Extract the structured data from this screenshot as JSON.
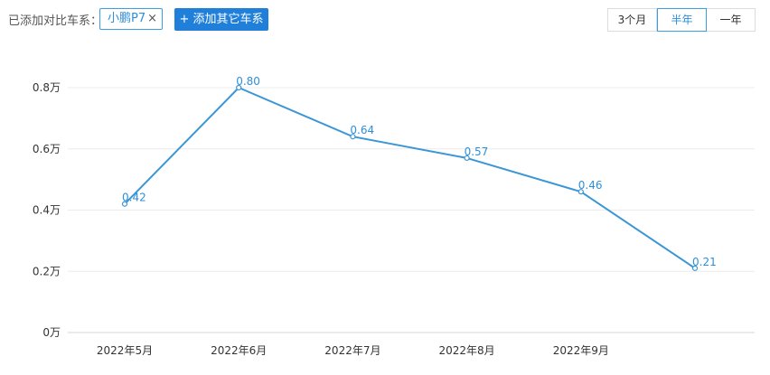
{
  "toolbar": {
    "compare_label": "已添加对比车系：",
    "chip_label": "小鹏P7",
    "chip_close_glyph": "×",
    "add_plus_glyph": "+",
    "add_button_label": "添加其它车系",
    "periods": [
      "3个月",
      "半年",
      "一年"
    ],
    "active_period": "半年"
  },
  "colors": {
    "line": "#3a96d6",
    "accent": "#1f7fd9",
    "grid": "#ececec"
  },
  "chart_data": {
    "type": "line",
    "categories": [
      "2022年5月",
      "2022年6月",
      "2022年7月",
      "2022年8月",
      "2022年9月",
      ""
    ],
    "values": [
      0.42,
      0.8,
      0.64,
      0.57,
      0.46,
      0.21
    ],
    "value_labels": [
      "0.42",
      "0.80",
      "0.64",
      "0.57",
      "0.46",
      "0.21"
    ],
    "yticks": [
      0,
      0.2,
      0.4,
      0.6,
      0.8
    ],
    "ytick_labels": [
      "0万",
      "0.2万",
      "0.4万",
      "0.6万",
      "0.8万"
    ],
    "ylim": [
      0,
      0.8
    ],
    "grid": true,
    "title": "",
    "xlabel": "",
    "ylabel": ""
  }
}
